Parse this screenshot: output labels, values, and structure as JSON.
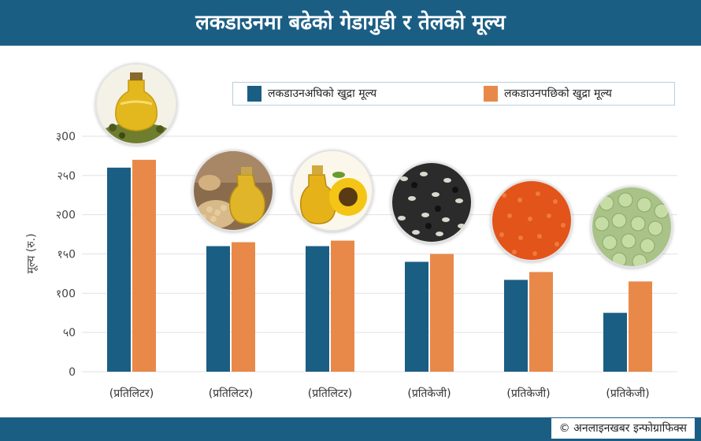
{
  "header": {
    "title": "लकडाउनमा बढेको गेडागुडी र तेलको मूल्य"
  },
  "legend": {
    "before": {
      "label": "लकडाउनअघिको खुद्रा मूल्य",
      "color": "#1b5e84"
    },
    "after": {
      "label": "लकडाउनपछिको खुद्रा मूल्य",
      "color": "#e8894a"
    }
  },
  "footer": {
    "credit": "© अनलाइनखबर इन्फोग्राफिक्स"
  },
  "chart_data": {
    "type": "bar",
    "title": "लकडाउनमा बढेको गेडागुडी र तेलको मूल्य",
    "ylabel": "मूल्य (रु.)",
    "xlabel": "",
    "ylim": [
      0,
      300
    ],
    "yticks": [
      {
        "value": 0,
        "label": "0"
      },
      {
        "value": 50,
        "label": "५0"
      },
      {
        "value": 100,
        "label": "१00"
      },
      {
        "value": 150,
        "label": "१५0"
      },
      {
        "value": 200,
        "label": "२00"
      },
      {
        "value": 250,
        "label": "२५0"
      },
      {
        "value": 300,
        "label": "३00"
      }
    ],
    "categories": [
      "(प्रतिलिटर)",
      "(प्रतिलिटर)",
      "(प्रतिलिटर)",
      "(प्रतिकेजी)",
      "(प्रतिकेजी)",
      "(प्रतिकेजी)"
    ],
    "category_icons": [
      "olive-oil-icon",
      "soybean-oil-icon",
      "sunflower-oil-icon",
      "black-lentil-icon",
      "red-lentil-icon",
      "green-peas-icon"
    ],
    "grid": true,
    "legend_position": "top-right",
    "series": [
      {
        "name": "लकडाउनअघिको खुद्रा मूल्य",
        "color": "#1b5e84",
        "values": [
          260,
          160,
          160,
          140,
          117,
          75
        ]
      },
      {
        "name": "लकडाउनपछिको खुद्रा मूल्य",
        "color": "#e8894a",
        "values": [
          270,
          165,
          167,
          150,
          127,
          115
        ]
      }
    ]
  }
}
